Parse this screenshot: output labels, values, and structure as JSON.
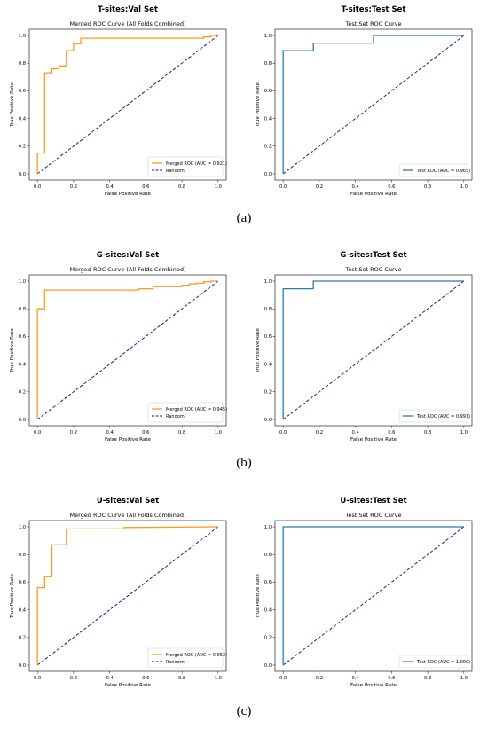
{
  "captions": [
    "(a)",
    "(b)",
    "(c)"
  ],
  "chart_data": [
    {
      "type": "line",
      "suptitle": "T-sites:Val Set",
      "title": "Merged ROC Curve (All Folds Combined)",
      "xlabel": "False Positive Rate",
      "ylabel": "True Positive Rate",
      "xlim": [
        0,
        1
      ],
      "ylim": [
        0,
        1
      ],
      "ticks": [
        "0.0",
        "0.2",
        "0.4",
        "0.6",
        "0.8",
        "1.0"
      ],
      "legend_position": "lower right",
      "series": [
        {
          "name": "Merged ROC (AUC = 0.921)",
          "color": "#ff9a1a",
          "style": "solid",
          "x": [
            0,
            0,
            0.04,
            0.04,
            0.08,
            0.08,
            0.12,
            0.12,
            0.16,
            0.16,
            0.2,
            0.2,
            0.24,
            0.24,
            0.92,
            0.92,
            0.96,
            0.96,
            1.0
          ],
          "y": [
            0,
            0.15,
            0.15,
            0.73,
            0.73,
            0.76,
            0.76,
            0.78,
            0.78,
            0.89,
            0.89,
            0.94,
            0.94,
            0.98,
            0.98,
            0.99,
            0.99,
            1.0,
            1.0
          ]
        },
        {
          "name": "Random",
          "color": "#1a1a8c",
          "style": "dashed",
          "x": [
            0,
            1
          ],
          "y": [
            0,
            1
          ]
        }
      ]
    },
    {
      "type": "line",
      "suptitle": "T-sites:Test Set",
      "title": "Test Set ROC Curve",
      "xlabel": "False Positive Rate",
      "ylabel": "True Positive Rate",
      "xlim": [
        0,
        1
      ],
      "ylim": [
        0,
        1
      ],
      "ticks": [
        "0.0",
        "0.2",
        "0.4",
        "0.6",
        "0.8",
        "1.0"
      ],
      "legend_position": "lower right",
      "series": [
        {
          "name": "Test ROC (AUC = 0.965)",
          "color": "#2a7ab8",
          "style": "solid",
          "x": [
            0,
            0,
            0.167,
            0.167,
            0.5,
            0.5,
            1.0
          ],
          "y": [
            0,
            0.89,
            0.89,
            0.945,
            0.945,
            1.0,
            1.0
          ]
        },
        {
          "name": "",
          "color": "#1a1a8c",
          "style": "dashed",
          "x": [
            0,
            1
          ],
          "y": [
            0,
            1
          ]
        }
      ]
    },
    {
      "type": "line",
      "suptitle": "G-sites:Val Set",
      "title": "Merged ROC Curve (All Folds Combined)",
      "xlabel": "False Positive Rate",
      "ylabel": "True Positive Rate",
      "xlim": [
        0,
        1
      ],
      "ylim": [
        0,
        1
      ],
      "ticks": [
        "0.0",
        "0.2",
        "0.4",
        "0.6",
        "0.8",
        "1.0"
      ],
      "legend_position": "lower right",
      "series": [
        {
          "name": "Merged ROC (AUC = 0.945)",
          "color": "#ff9a1a",
          "style": "solid",
          "x": [
            0,
            0,
            0.04,
            0.04,
            0.56,
            0.56,
            0.64,
            0.64,
            0.8,
            0.8,
            0.84,
            0.84,
            0.88,
            0.88,
            0.92,
            0.92,
            0.96,
            0.96,
            1.0
          ],
          "y": [
            0,
            0.8,
            0.8,
            0.935,
            0.935,
            0.945,
            0.945,
            0.96,
            0.96,
            0.97,
            0.97,
            0.98,
            0.98,
            0.985,
            0.985,
            0.995,
            0.995,
            1.0,
            1.0
          ]
        },
        {
          "name": "Random",
          "color": "#1a1a8c",
          "style": "dashed",
          "x": [
            0,
            1
          ],
          "y": [
            0,
            1
          ]
        }
      ]
    },
    {
      "type": "line",
      "suptitle": "G-sites:Test Set",
      "title": "Test Set ROC Curve",
      "xlabel": "False Positive Rate",
      "ylabel": "True Positive Rate",
      "xlim": [
        0,
        1
      ],
      "ylim": [
        0,
        1
      ],
      "ticks": [
        "0.0",
        "0.2",
        "0.4",
        "0.6",
        "0.8",
        "1.0"
      ],
      "legend_position": "lower right",
      "series": [
        {
          "name": "Test ROC (AUC = 0.991)",
          "color": "#2a7ab8",
          "style": "solid",
          "x": [
            0,
            0,
            0.167,
            0.167,
            1.0
          ],
          "y": [
            0,
            0.945,
            0.945,
            1.0,
            1.0
          ]
        },
        {
          "name": "",
          "color": "#1a1a8c",
          "style": "dashed",
          "x": [
            0,
            1
          ],
          "y": [
            0,
            1
          ]
        }
      ]
    },
    {
      "type": "line",
      "suptitle": "U-sites:Val Set",
      "title": "Merged ROC Curve (All Folds Combined)",
      "xlabel": "False Positive Rate",
      "ylabel": "True Positive Rate",
      "xlim": [
        0,
        1
      ],
      "ylim": [
        0,
        1
      ],
      "ticks": [
        "0.0",
        "0.2",
        "0.4",
        "0.6",
        "0.8",
        "1.0"
      ],
      "legend_position": "lower right",
      "series": [
        {
          "name": "Merged ROC (AUC = 0.953)",
          "color": "#ff9a1a",
          "style": "solid",
          "x": [
            0,
            0,
            0.04,
            0.04,
            0.08,
            0.08,
            0.16,
            0.16,
            0.48,
            0.48,
            1.0
          ],
          "y": [
            0,
            0.56,
            0.56,
            0.64,
            0.64,
            0.87,
            0.87,
            0.985,
            0.985,
            0.995,
            1.0
          ]
        },
        {
          "name": "Random",
          "color": "#1a1a8c",
          "style": "dashed",
          "x": [
            0,
            1
          ],
          "y": [
            0,
            1
          ]
        }
      ]
    },
    {
      "type": "line",
      "suptitle": "U-sites:Test Set",
      "title": "Test Set ROC Curve",
      "xlabel": "False Positive Rate",
      "ylabel": "True Positive Rate",
      "xlim": [
        0,
        1
      ],
      "ylim": [
        0,
        1
      ],
      "ticks": [
        "0.0",
        "0.2",
        "0.4",
        "0.6",
        "0.8",
        "1.0"
      ],
      "legend_position": "lower right",
      "series": [
        {
          "name": "Test ROC (AUC = 1.000)",
          "color": "#2a7ab8",
          "style": "solid",
          "x": [
            0,
            0,
            1.0
          ],
          "y": [
            0,
            1.0,
            1.0
          ]
        },
        {
          "name": "",
          "color": "#1a1a8c",
          "style": "dashed",
          "x": [
            0,
            1
          ],
          "y": [
            0,
            1
          ]
        }
      ]
    }
  ]
}
